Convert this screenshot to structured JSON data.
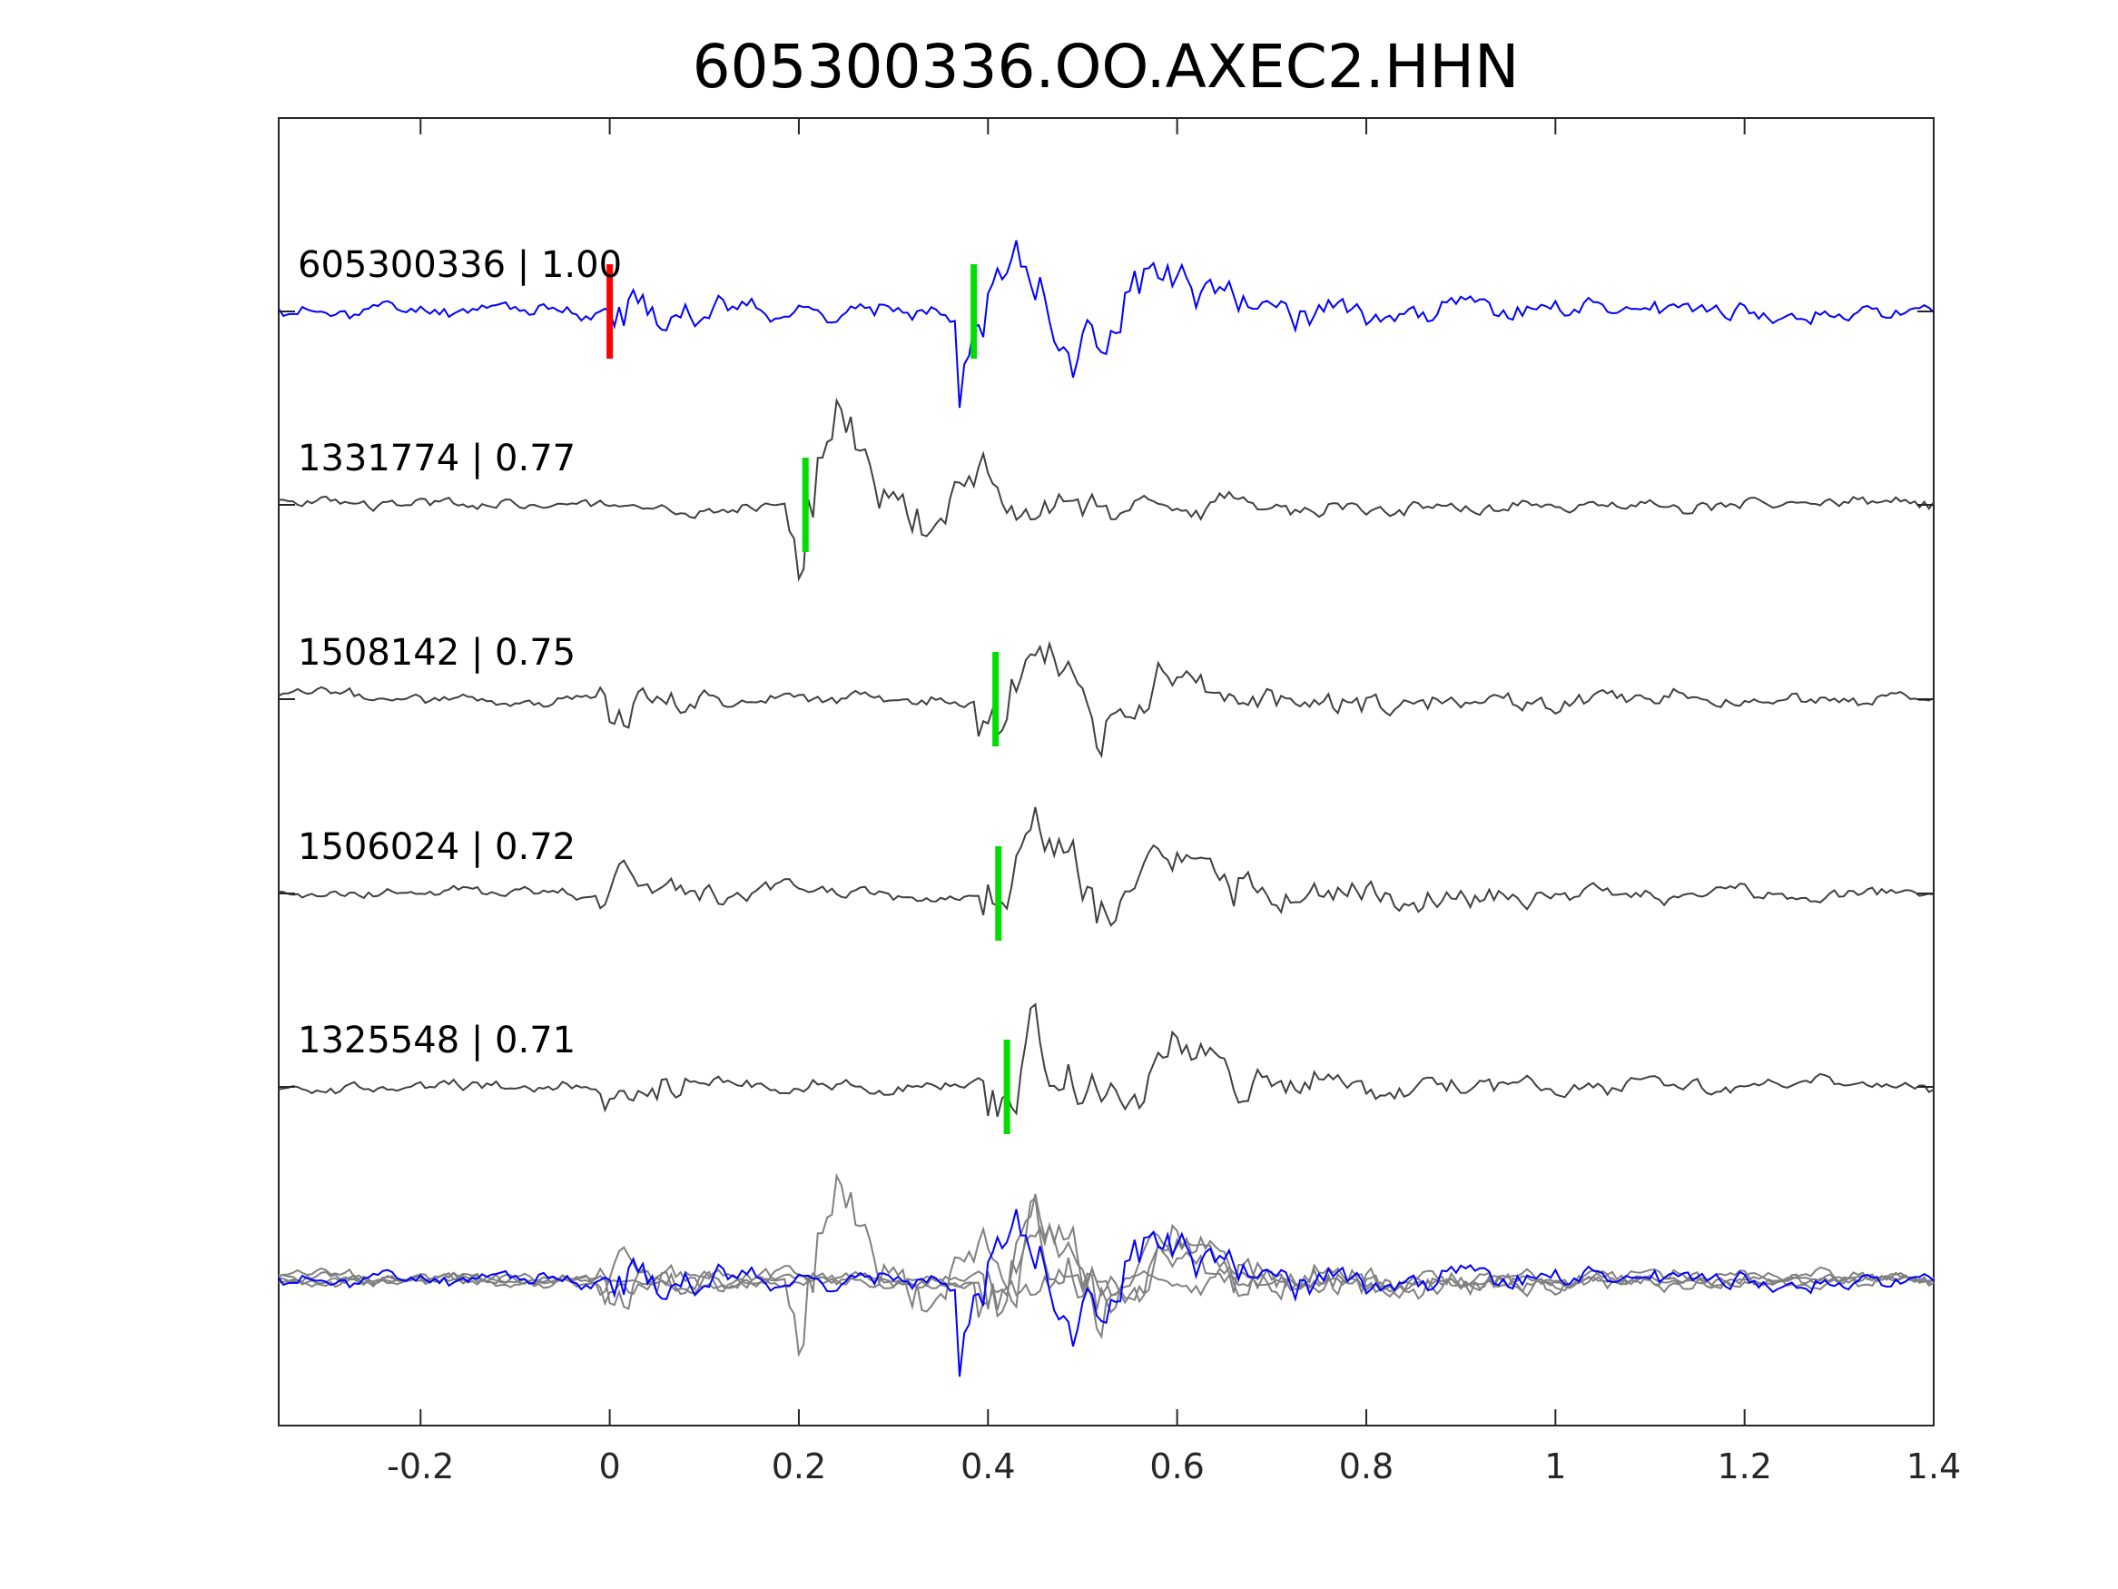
{
  "chart_data": {
    "type": "line",
    "title": "605300336.OO.AXEC2.HHN",
    "xlabel": "",
    "ylabel": "",
    "xlim": [
      -0.35,
      1.4
    ],
    "xticks": [
      -0.2,
      0,
      0.2,
      0.4,
      0.6,
      0.8,
      1,
      1.2,
      1.4
    ],
    "xtick_labels": [
      "-0.2",
      "0",
      "0.2",
      "0.4",
      "0.6",
      "0.8",
      "1",
      "1.2",
      "1.4"
    ],
    "grid": false,
    "traces": [
      {
        "id": "605300336",
        "cc": "1.00",
        "label": "605300336 | 1.00",
        "color": "#0000ff",
        "picks": [
          {
            "t": 0.0,
            "color": "#ff0000"
          },
          {
            "t": 0.385,
            "color": "#00dd00"
          }
        ],
        "event_time": 0.0,
        "seed": 11
      },
      {
        "id": "1331774",
        "cc": "0.77",
        "label": "1331774 | 0.77",
        "color": "#404040",
        "picks": [
          {
            "t": 0.207,
            "color": "#00dd00"
          }
        ],
        "event_time": 0.2,
        "seed": 23
      },
      {
        "id": "1508142",
        "cc": "0.75",
        "label": "1508142 | 0.75",
        "color": "#404040",
        "picks": [
          {
            "t": 0.408,
            "color": "#00dd00"
          }
        ],
        "event_time": 0.0,
        "seed": 37
      },
      {
        "id": "1506024",
        "cc": "0.72",
        "label": "1506024 | 0.72",
        "color": "#404040",
        "picks": [
          {
            "t": 0.411,
            "color": "#00dd00"
          }
        ],
        "event_time": 0.0,
        "seed": 41
      },
      {
        "id": "1325548",
        "cc": "0.71",
        "label": "1325548 | 0.71",
        "color": "#404040",
        "picks": [
          {
            "t": 0.42,
            "color": "#00dd00"
          }
        ],
        "event_time": 0.0,
        "seed": 53
      }
    ],
    "overlay": {
      "description_color": "#808080",
      "reference_color": "#0000ff"
    }
  }
}
